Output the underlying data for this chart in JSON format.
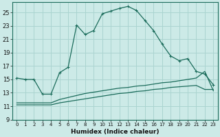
{
  "xlabel": "Humidex (Indice chaleur)",
  "bg_color": "#cceae7",
  "grid_color": "#aad4d0",
  "line_color": "#1a6b5a",
  "spine_color": "#1a6b5a",
  "xlim": [
    -0.5,
    23.5
  ],
  "ylim": [
    9,
    26.5
  ],
  "xticks": [
    0,
    1,
    2,
    3,
    4,
    5,
    6,
    7,
    8,
    9,
    10,
    11,
    12,
    13,
    14,
    15,
    16,
    17,
    18,
    19,
    20,
    21,
    22,
    23
  ],
  "yticks": [
    9,
    11,
    13,
    15,
    17,
    19,
    21,
    23,
    25
  ],
  "line1_x": [
    0,
    1,
    2,
    3,
    4,
    5,
    6,
    7,
    8,
    9,
    10,
    11,
    12,
    13,
    14,
    15,
    16,
    17,
    18,
    19,
    20,
    21,
    22,
    23
  ],
  "line1_y": [
    15.2,
    15.0,
    15.0,
    12.8,
    12.8,
    16.0,
    16.8,
    23.1,
    21.7,
    22.3,
    24.8,
    25.2,
    25.6,
    25.9,
    25.3,
    23.8,
    22.3,
    20.3,
    18.5,
    17.8,
    18.1,
    16.2,
    15.8,
    14.2
  ],
  "line2_x": [
    0,
    1,
    2,
    3,
    4,
    5,
    6,
    7,
    8,
    9,
    10,
    11,
    12,
    13,
    14,
    15,
    16,
    17,
    18,
    19,
    20,
    21,
    22,
    23
  ],
  "line2_y": [
    11.5,
    11.5,
    11.5,
    11.5,
    11.5,
    12.0,
    12.3,
    12.6,
    12.9,
    13.1,
    13.3,
    13.5,
    13.7,
    13.8,
    14.0,
    14.1,
    14.3,
    14.5,
    14.6,
    14.8,
    15.0,
    15.2,
    16.2,
    13.3
  ],
  "line3_x": [
    0,
    1,
    2,
    3,
    4,
    5,
    6,
    7,
    8,
    9,
    10,
    11,
    12,
    13,
    14,
    15,
    16,
    17,
    18,
    19,
    20,
    21,
    22,
    23
  ],
  "line3_y": [
    11.2,
    11.2,
    11.2,
    11.2,
    11.2,
    11.5,
    11.7,
    11.9,
    12.1,
    12.3,
    12.5,
    12.7,
    12.9,
    13.0,
    13.2,
    13.3,
    13.5,
    13.6,
    13.8,
    13.9,
    14.0,
    14.1,
    13.5,
    13.5
  ],
  "xtick_fontsize": 5.0,
  "ytick_fontsize": 6.0,
  "xlabel_fontsize": 6.5
}
